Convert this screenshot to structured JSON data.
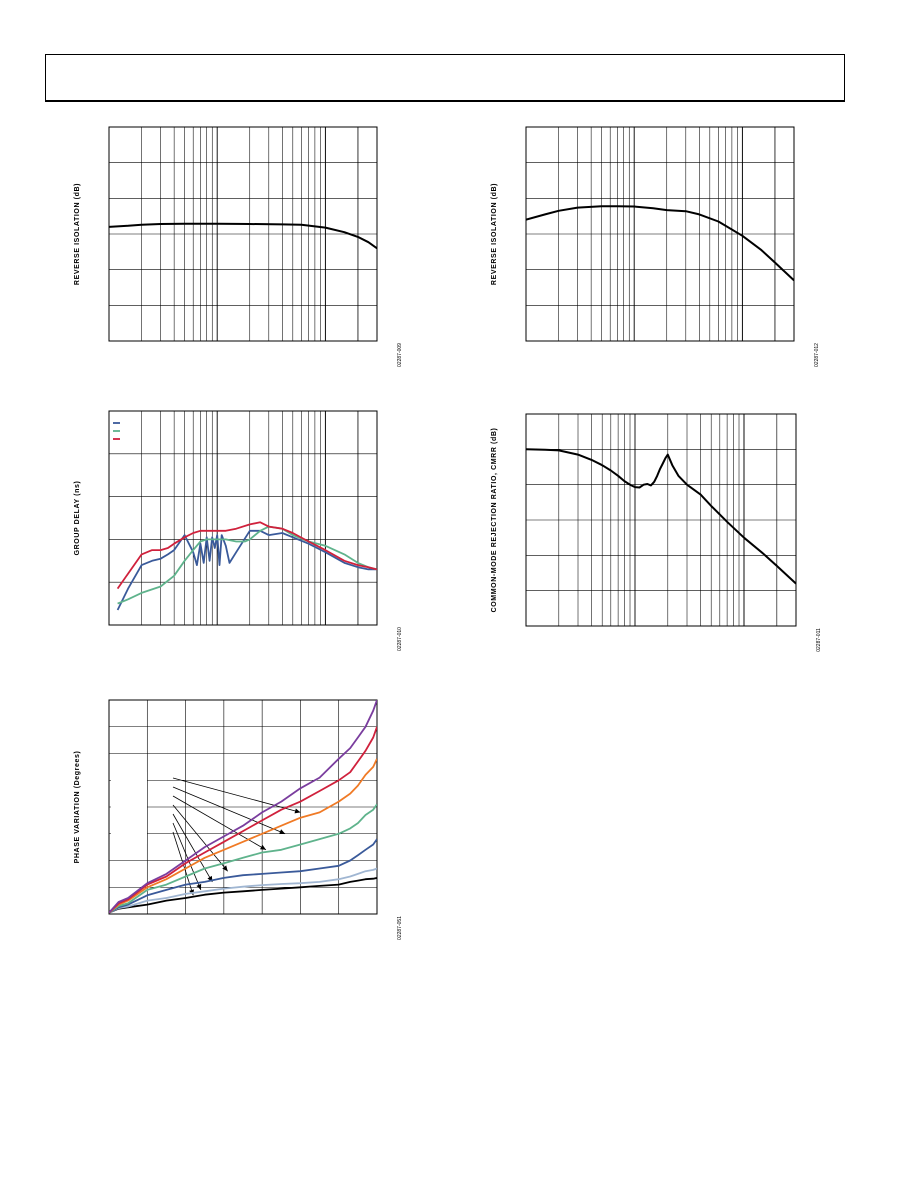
{
  "header": {
    "title": ""
  },
  "chart_data": [
    {
      "id": "reverse-isolation-1",
      "type": "line",
      "title": "",
      "xlabel": "",
      "ylabel": "REVERSE ISOLATION (dB)",
      "figure_id": "02287-009",
      "x_scale": "log",
      "xlim": [
        1,
        300
      ],
      "ylim": [
        -60,
        0
      ],
      "y_divisions": 6,
      "grid": true,
      "series": [
        {
          "color": "#000000",
          "x": [
            1,
            1.5,
            2,
            3,
            5,
            10,
            20,
            40,
            60,
            100,
            150,
            200,
            250,
            300
          ],
          "y": [
            -28,
            -27.7,
            -27.4,
            -27.2,
            -27.1,
            -27.1,
            -27.2,
            -27.3,
            -27.4,
            -28.2,
            -29.5,
            -30.8,
            -32.3,
            -34
          ]
        }
      ]
    },
    {
      "id": "reverse-isolation-2",
      "type": "line",
      "title": "",
      "xlabel": "",
      "ylabel": "REVERSE ISOLATION (dB)",
      "figure_id": "02287-012",
      "x_scale": "log",
      "xlim": [
        1,
        300
      ],
      "ylim": [
        -60,
        0
      ],
      "y_divisions": 6,
      "grid": true,
      "series": [
        {
          "color": "#000000",
          "x": [
            1,
            1.5,
            2,
            3,
            5,
            7,
            10,
            15,
            20,
            30,
            40,
            60,
            100,
            150,
            200,
            300
          ],
          "y": [
            -26,
            -24.5,
            -23.5,
            -22.6,
            -22.2,
            -22.2,
            -22.3,
            -22.8,
            -23.3,
            -23.6,
            -24.5,
            -26.5,
            -30.5,
            -34.5,
            -38,
            -43
          ]
        }
      ]
    },
    {
      "id": "group-delay",
      "type": "line",
      "title": "",
      "xlabel": "",
      "ylabel": "GROUP DELAY (ns)",
      "figure_id": "02287-010",
      "x_scale": "log",
      "xlim": [
        1,
        300
      ],
      "ylim": [
        0,
        5
      ],
      "y_divisions": 5,
      "grid": true,
      "legend": {
        "placement": "top-left",
        "entries": [
          {
            "color": "#3a5a9a"
          },
          {
            "color": "#5fb38c"
          },
          {
            "color": "#d0213c"
          }
        ]
      },
      "series": [
        {
          "color": "#3a5a9a",
          "x": [
            1.2,
            1.5,
            2,
            2.5,
            3,
            3.5,
            4,
            5,
            6,
            6.5,
            7,
            7.5,
            8,
            8.5,
            9,
            9.5,
            10,
            10.5,
            11,
            12,
            13,
            15,
            20,
            25,
            30,
            40,
            50,
            70,
            100,
            150,
            200,
            250,
            300
          ],
          "y": [
            0.35,
            0.85,
            1.4,
            1.5,
            1.55,
            1.65,
            1.75,
            2.1,
            1.7,
            1.4,
            1.9,
            1.45,
            2.05,
            1.5,
            2.05,
            1.8,
            2.1,
            1.4,
            2.1,
            1.85,
            1.45,
            1.7,
            2.2,
            2.2,
            2.1,
            2.15,
            2.05,
            1.9,
            1.7,
            1.45,
            1.35,
            1.3,
            1.3
          ]
        },
        {
          "color": "#5fb38c",
          "x": [
            1.2,
            1.5,
            2,
            3,
            4,
            5,
            6,
            7,
            8,
            10,
            12,
            15,
            18,
            20,
            25,
            30,
            40,
            50,
            70,
            100,
            150,
            200,
            250,
            300
          ],
          "y": [
            0.5,
            0.6,
            0.75,
            0.9,
            1.15,
            1.5,
            1.75,
            1.95,
            2.0,
            2.0,
            2.0,
            1.95,
            1.95,
            2.0,
            2.2,
            2.3,
            2.25,
            2.1,
            1.95,
            1.85,
            1.65,
            1.45,
            1.35,
            1.3
          ]
        },
        {
          "color": "#d0213c",
          "x": [
            1.2,
            1.5,
            2,
            2.5,
            3,
            3.5,
            4,
            5,
            6,
            7,
            8,
            10,
            12,
            15,
            20,
            25,
            30,
            40,
            50,
            70,
            100,
            150,
            200,
            250,
            300
          ],
          "y": [
            0.85,
            1.2,
            1.65,
            1.75,
            1.75,
            1.8,
            1.9,
            2.05,
            2.15,
            2.2,
            2.2,
            2.2,
            2.2,
            2.25,
            2.35,
            2.4,
            2.3,
            2.25,
            2.15,
            1.95,
            1.75,
            1.5,
            1.4,
            1.35,
            1.3
          ]
        }
      ]
    },
    {
      "id": "cmrr",
      "type": "line",
      "title": "",
      "xlabel": "",
      "ylabel": "COMMON-MODE REJECTION RATIO, CMRR (dB)",
      "figure_id": "02287-011",
      "x_scale": "log",
      "xlim": [
        1,
        300
      ],
      "ylim": [
        -60,
        0
      ],
      "y_divisions": 6,
      "grid": true,
      "series": [
        {
          "color": "#000000",
          "x": [
            1,
            1.5,
            2,
            3,
            4,
            5,
            6,
            7,
            8,
            9,
            10,
            11,
            12,
            13,
            14,
            15,
            16,
            17,
            18,
            19,
            20,
            22,
            25,
            30,
            40,
            50,
            70,
            100,
            150,
            200,
            300
          ],
          "y": [
            -10,
            -10.1,
            -10.3,
            -11.5,
            -13,
            -14.5,
            -16,
            -17.5,
            -19,
            -20,
            -20.7,
            -20.8,
            -20,
            -19.8,
            -20.2,
            -19.2,
            -17.5,
            -15.5,
            -14,
            -12.5,
            -11.5,
            -14.5,
            -17.5,
            -20,
            -22.8,
            -26,
            -30.5,
            -35,
            -39.5,
            -43,
            -48
          ]
        }
      ]
    },
    {
      "id": "phase-variation",
      "type": "line",
      "title": "",
      "xlabel": "",
      "ylabel": "PHASE VARIATION (Degrees)",
      "figure_id": "02287-051",
      "x_scale": "linear",
      "xlim": [
        0,
        7
      ],
      "ylim": [
        0,
        8
      ],
      "x_divisions": 7,
      "y_divisions": 8,
      "grid": true,
      "series": [
        {
          "color": "#000000",
          "x": [
            0,
            0.25,
            0.5,
            1,
            1.5,
            2,
            2.5,
            3,
            3.5,
            4,
            4.5,
            5,
            5.5,
            6,
            6.3,
            6.5,
            6.7,
            6.9,
            7
          ],
          "y": [
            0.05,
            0.2,
            0.25,
            0.35,
            0.5,
            0.6,
            0.72,
            0.8,
            0.85,
            0.9,
            0.95,
            1.0,
            1.05,
            1.1,
            1.2,
            1.25,
            1.3,
            1.32,
            1.35
          ]
        },
        {
          "color": "#a0b6d2",
          "x": [
            0,
            0.25,
            0.5,
            1,
            1.5,
            2,
            2.5,
            3,
            3.5,
            4,
            4.5,
            5,
            5.5,
            6,
            6.3,
            6.5,
            6.7,
            6.9,
            7
          ],
          "y": [
            0.05,
            0.22,
            0.28,
            0.5,
            0.6,
            0.75,
            0.85,
            0.95,
            1.02,
            1.08,
            1.12,
            1.15,
            1.2,
            1.3,
            1.4,
            1.5,
            1.6,
            1.65,
            1.7
          ]
        },
        {
          "color": "#3a5a9a",
          "x": [
            0,
            0.25,
            0.5,
            1,
            1.5,
            2,
            2.5,
            3,
            3.5,
            4,
            4.5,
            5,
            5.5,
            6,
            6.3,
            6.5,
            6.7,
            6.9,
            7
          ],
          "y": [
            0.05,
            0.25,
            0.35,
            0.7,
            0.9,
            1.1,
            1.2,
            1.35,
            1.45,
            1.5,
            1.55,
            1.6,
            1.7,
            1.8,
            2.0,
            2.2,
            2.4,
            2.6,
            2.8
          ]
        },
        {
          "color": "#5fb38c",
          "x": [
            0,
            0.25,
            0.5,
            1,
            1.5,
            2,
            2.5,
            3,
            3.5,
            4,
            4.5,
            5,
            5.5,
            6,
            6.3,
            6.5,
            6.7,
            6.9,
            7
          ],
          "y": [
            0.05,
            0.3,
            0.4,
            0.9,
            1.1,
            1.4,
            1.7,
            1.9,
            2.1,
            2.3,
            2.4,
            2.6,
            2.8,
            3.0,
            3.2,
            3.4,
            3.7,
            3.9,
            4.1
          ]
        },
        {
          "color": "#f07a25",
          "x": [
            0,
            0.25,
            0.5,
            1,
            1.5,
            2,
            2.5,
            3,
            3.5,
            4,
            4.5,
            5,
            5.5,
            6,
            6.3,
            6.5,
            6.7,
            6.9,
            7
          ],
          "y": [
            0.05,
            0.35,
            0.5,
            1.0,
            1.3,
            1.7,
            2.1,
            2.4,
            2.7,
            3.0,
            3.3,
            3.6,
            3.8,
            4.2,
            4.5,
            4.8,
            5.2,
            5.5,
            5.8
          ]
        },
        {
          "color": "#d0213c",
          "x": [
            0,
            0.25,
            0.5,
            1,
            1.5,
            2,
            2.5,
            3,
            3.5,
            4,
            4.5,
            5,
            5.5,
            6,
            6.3,
            6.5,
            6.7,
            6.9,
            7
          ],
          "y": [
            0.05,
            0.4,
            0.55,
            1.1,
            1.4,
            1.9,
            2.3,
            2.7,
            3.1,
            3.5,
            3.9,
            4.2,
            4.6,
            5.0,
            5.3,
            5.7,
            6.1,
            6.6,
            7.0
          ]
        },
        {
          "color": "#7a3d9e",
          "x": [
            0,
            0.25,
            0.5,
            1,
            1.5,
            2,
            2.5,
            3,
            3.5,
            4,
            4.5,
            5,
            5.5,
            6,
            6.3,
            6.5,
            6.7,
            6.9,
            7
          ],
          "y": [
            0.05,
            0.45,
            0.6,
            1.15,
            1.5,
            2.0,
            2.5,
            2.9,
            3.3,
            3.8,
            4.2,
            4.7,
            5.1,
            5.8,
            6.2,
            6.6,
            7.0,
            7.6,
            8.0
          ]
        }
      ]
    }
  ]
}
